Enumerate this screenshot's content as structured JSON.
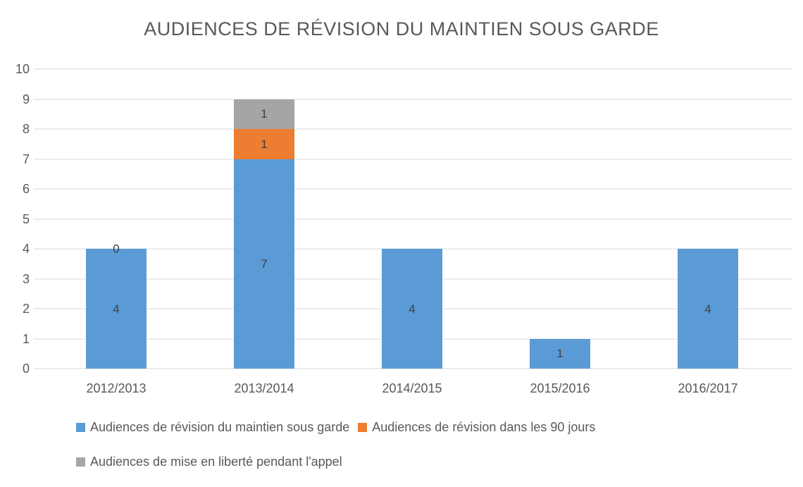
{
  "chart_data": {
    "type": "bar",
    "stacked": true,
    "title": "AUDIENCES DE RÉVISION DU MAINTIEN SOUS GARDE",
    "categories": [
      "2012/2013",
      "2013/2014",
      "2014/2015",
      "2015/2016",
      "2016/2017"
    ],
    "series": [
      {
        "name": "Audiences de révision du maintien sous garde",
        "color": "#5B9BD5",
        "values": [
          4,
          7,
          4,
          1,
          4
        ],
        "labels": [
          "4",
          "7",
          "4",
          "1",
          "4"
        ]
      },
      {
        "name": "Audiences de révision dans les 90 jours",
        "color": "#ED7D31",
        "values": [
          0,
          1,
          0,
          0,
          0
        ],
        "labels": [
          "0",
          "1",
          "",
          "",
          ""
        ]
      },
      {
        "name": "Audiences de mise en liberté pendant l'appel",
        "color": "#A5A5A5",
        "values": [
          0,
          1,
          0,
          0,
          0
        ],
        "labels": [
          "",
          "1",
          "",
          "",
          ""
        ]
      }
    ],
    "ylim": [
      0,
      10
    ],
    "yticks": [
      0,
      1,
      2,
      3,
      4,
      5,
      6,
      7,
      8,
      9,
      10
    ],
    "grid": true,
    "legend_position": "bottom",
    "colors": {
      "axis_text": "#595959",
      "gridline": "#D9D9D9",
      "data_label": "#404040"
    }
  }
}
